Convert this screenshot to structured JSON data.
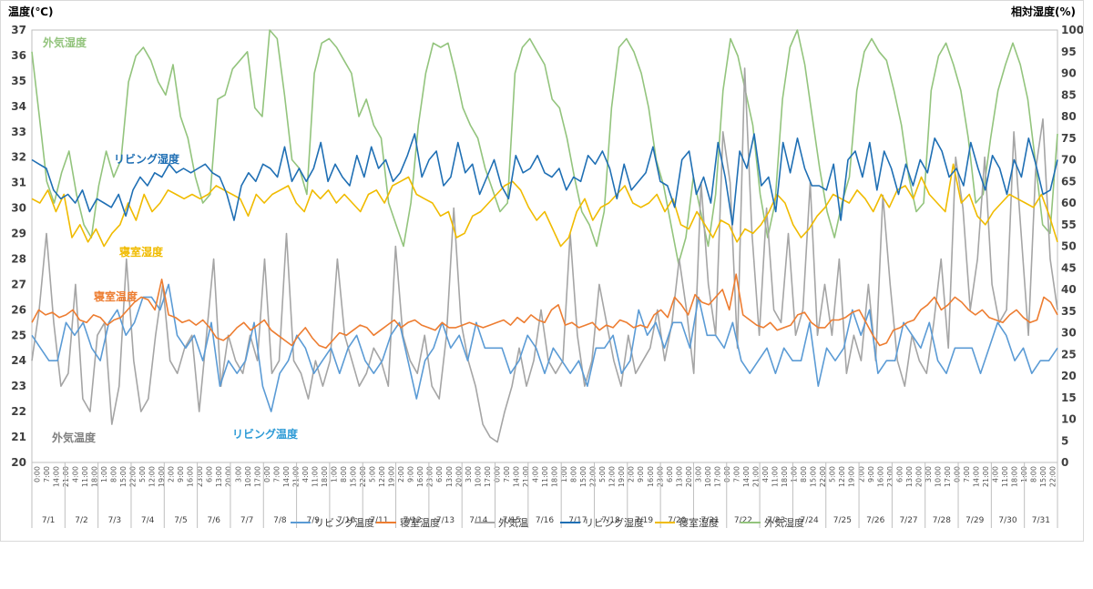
{
  "chart_data": {
    "type": "line",
    "y_left_label": "温度(℃)",
    "y_right_label": "相対湿度(%)",
    "y_left_ticks": [
      20,
      21,
      22,
      23,
      24,
      25,
      26,
      27,
      28,
      29,
      30,
      31,
      32,
      33,
      34,
      35,
      36,
      37
    ],
    "y_right_ticks": [
      0,
      5,
      10,
      15,
      20,
      25,
      30,
      35,
      40,
      45,
      50,
      55,
      60,
      65,
      70,
      75,
      80,
      85,
      90,
      95,
      100
    ],
    "ylim_left": [
      20,
      37
    ],
    "ylim_right": [
      0,
      100
    ],
    "x_hour_labels": [
      "0:00",
      "7:00",
      "14:00",
      "21:00",
      "4:00",
      "11:00",
      "18:00",
      "1:00",
      "8:00",
      "15:00",
      "22:00",
      "5:00",
      "12:00",
      "19:00",
      "2:00",
      "9:00",
      "16:00",
      "23:00",
      "6:00",
      "13:00",
      "20:00",
      "3:00",
      "10:00",
      "17:00",
      "0:00",
      "7:00",
      "14:00",
      "21:00",
      "4:00",
      "11:00",
      "18:00",
      "1:00",
      "8:00",
      "15:00",
      "22:00",
      "5:00",
      "12:00",
      "19:00",
      "2:00",
      "9:00",
      "16:00",
      "23:00",
      "6:00",
      "13:00",
      "20:00",
      "3:00",
      "10:00",
      "17:00",
      "0:00",
      "7:00",
      "14:00",
      "21:00",
      "4:00",
      "11:00",
      "18:00",
      "1:00",
      "8:00",
      "15:00",
      "22:00",
      "5:00",
      "12:00",
      "19:00",
      "2:00",
      "9:00",
      "16:00",
      "23:00",
      "6:00",
      "13:00",
      "20:00",
      "3:00",
      "10:00",
      "17:00",
      "0:00",
      "7:00",
      "14:00",
      "21:00",
      "4:00",
      "11:00",
      "18:00",
      "1:00",
      "8:00",
      "15:00",
      "22:00",
      "5:00",
      "12:00",
      "19:00",
      "2:00",
      "9:00",
      "16:00",
      "23:00",
      "6:00",
      "13:00",
      "20:00",
      "3:00",
      "10:00",
      "17:00",
      "0:00",
      "7:00",
      "14:00",
      "21:00",
      "4:00",
      "11:00",
      "18:00",
      "1:00",
      "8:00",
      "15:00",
      "22:00"
    ],
    "x_day_labels": [
      "7/1",
      "7/2",
      "7/3",
      "7/4",
      "7/5",
      "7/6",
      "7/7",
      "7/8",
      "7/9",
      "7/10",
      "7/11",
      "7/12",
      "7/13",
      "7/14",
      "7/15",
      "7/16",
      "7/17",
      "7/18",
      "7/19",
      "7/20",
      "7/21",
      "7/22",
      "7/23",
      "7/24",
      "7/25",
      "7/26",
      "7/27",
      "7/28",
      "7/29",
      "7/30",
      "7/31"
    ],
    "legend": [
      "リビング温度",
      "寝室温度",
      "外気温",
      "リビング湿度",
      "寝室湿度",
      "外気湿度"
    ],
    "series": [
      {
        "name": "リビング温度",
        "axis": "left",
        "color": "#5b9bd5",
        "values": [
          25.0,
          24.5,
          24.0,
          24.0,
          25.5,
          25.0,
          25.5,
          24.5,
          24.0,
          25.5,
          26.0,
          25.0,
          25.5,
          26.5,
          26.5,
          26.0,
          27.0,
          25.0,
          24.5,
          25.0,
          24.0,
          25.5,
          23.0,
          24.0,
          23.5,
          24.0,
          25.5,
          23.0,
          22.0,
          23.5,
          24.0,
          25.0,
          24.5,
          23.5,
          24.0,
          24.5,
          23.5,
          24.5,
          25.0,
          24.0,
          23.5,
          24.0,
          25.0,
          25.5,
          24.0,
          22.5,
          24.0,
          24.5,
          25.5,
          24.5,
          25.0,
          24.0,
          25.5,
          24.5,
          24.5,
          24.5,
          23.5,
          24.0,
          25.0,
          24.5,
          23.5,
          24.5,
          24.0,
          23.5,
          24.0,
          23.0,
          24.5,
          24.5,
          25.0,
          23.5,
          24.0,
          26.0,
          25.0,
          25.5,
          24.5,
          25.5,
          25.5,
          24.5,
          26.5,
          25.0,
          25.0,
          24.5,
          25.5,
          24.0,
          23.5,
          24.0,
          24.5,
          23.5,
          24.5,
          24.0,
          24.0,
          25.5,
          23.0,
          24.5,
          24.0,
          24.5,
          26.0,
          25.0,
          26.0,
          23.5,
          24.0,
          24.0,
          25.5,
          25.0,
          24.5,
          25.5,
          24.0,
          23.5,
          24.5,
          24.5,
          24.5,
          23.5,
          24.5,
          25.5,
          25.0,
          24.0,
          24.5,
          23.5,
          24.0,
          24.0,
          24.5
        ]
      },
      {
        "name": "寝室温度",
        "axis": "left",
        "color": "#ed7d31",
        "values": [
          25.5,
          26.0,
          25.8,
          25.9,
          25.7,
          25.8,
          26.0,
          25.6,
          25.5,
          25.8,
          25.7,
          25.4,
          25.6,
          25.7,
          26.0,
          26.3,
          26.5,
          26.4,
          26.0,
          27.2,
          25.8,
          25.7,
          25.5,
          25.6,
          25.4,
          25.6,
          25.3,
          24.9,
          24.8,
          25.0,
          25.3,
          25.5,
          25.2,
          25.4,
          25.6,
          25.2,
          25.0,
          24.8,
          24.6,
          25.0,
          25.3,
          24.9,
          24.6,
          24.5,
          24.8,
          25.1,
          25.0,
          25.2,
          25.4,
          25.3,
          25.0,
          25.2,
          25.4,
          25.6,
          25.3,
          25.5,
          25.6,
          25.4,
          25.3,
          25.2,
          25.5,
          25.3,
          25.3,
          25.4,
          25.5,
          25.4,
          25.3,
          25.4,
          25.5,
          25.6,
          25.4,
          25.7,
          25.5,
          25.8,
          25.6,
          25.5,
          26.0,
          26.2,
          25.4,
          25.5,
          25.3,
          25.4,
          25.5,
          25.2,
          25.4,
          25.3,
          25.6,
          25.5,
          25.3,
          25.4,
          25.3,
          25.8,
          26.0,
          25.7,
          26.5,
          26.2,
          25.8,
          26.6,
          26.3,
          26.2,
          26.5,
          26.8,
          26.0,
          27.4,
          25.8,
          25.6,
          25.4,
          25.3,
          25.5,
          25.2,
          25.3,
          25.4,
          25.8,
          25.9,
          25.5,
          25.3,
          25.3,
          25.6,
          25.6,
          25.7,
          25.9,
          26.0,
          25.5,
          25.0,
          24.6,
          24.7,
          25.2,
          25.3,
          25.5,
          25.6,
          26.0,
          26.2,
          26.5,
          26.0,
          26.2,
          26.5,
          26.3,
          26.0,
          25.8,
          26.0,
          25.7,
          25.6,
          25.5,
          25.8,
          26.0,
          25.7,
          25.5,
          25.6,
          26.5,
          26.3,
          25.8
        ]
      },
      {
        "name": "外気温",
        "axis": "left",
        "color": "#a5a5a5",
        "values": [
          24.0,
          26.0,
          29.0,
          25.5,
          23.0,
          23.5,
          27.0,
          22.5,
          22.0,
          25.0,
          25.5,
          21.5,
          23.0,
          28.0,
          24.0,
          22.0,
          22.5,
          25.0,
          27.0,
          24.0,
          23.5,
          24.5,
          25.0,
          22.0,
          25.0,
          28.0,
          23.0,
          25.0,
          24.0,
          23.5,
          25.0,
          24.0,
          28.0,
          23.5,
          24.0,
          29.0,
          24.0,
          23.5,
          22.5,
          24.0,
          23.0,
          24.0,
          28.0,
          25.0,
          24.0,
          23.0,
          23.5,
          24.5,
          24.0,
          23.0,
          28.5,
          25.0,
          24.0,
          23.5,
          25.0,
          23.0,
          22.5,
          25.0,
          30.0,
          25.5,
          24.0,
          23.0,
          21.5,
          21.0,
          20.8,
          22.0,
          23.0,
          24.5,
          23.0,
          24.0,
          26.0,
          24.0,
          23.5,
          24.0,
          29.0,
          25.0,
          23.0,
          24.0,
          27.0,
          25.5,
          24.0,
          23.0,
          25.0,
          23.5,
          24.0,
          24.5,
          26.0,
          24.0,
          25.5,
          28.0,
          26.0,
          23.5,
          31.0,
          27.0,
          25.0,
          33.0,
          31.0,
          24.5,
          35.5,
          29.0,
          25.0,
          30.0,
          26.0,
          25.5,
          29.0,
          25.0,
          26.0,
          31.0,
          25.0,
          27.0,
          25.0,
          28.0,
          23.5,
          25.0,
          24.0,
          27.0,
          24.0,
          30.5,
          27.0,
          24.0,
          23.0,
          25.0,
          24.0,
          23.5,
          25.5,
          28.0,
          24.5,
          32.0,
          30.0,
          26.0,
          28.0,
          32.0,
          27.0,
          25.5,
          26.0,
          33.0,
          29.0,
          25.0,
          31.5,
          33.5,
          28.0,
          26.0
        ]
      },
      {
        "name": "リビング湿度",
        "axis": "right",
        "color": "#1f6fb4",
        "values": [
          70,
          69,
          68,
          63,
          61,
          62,
          60,
          63,
          58,
          61,
          60,
          59,
          62,
          57,
          63,
          66,
          64,
          67,
          66,
          69,
          67,
          68,
          67,
          68,
          69,
          67,
          66,
          62,
          56,
          64,
          67,
          65,
          69,
          68,
          66,
          73,
          65,
          68,
          65,
          68,
          74,
          65,
          69,
          66,
          64,
          71,
          66,
          73,
          68,
          70,
          65,
          67,
          71,
          76,
          66,
          70,
          72,
          64,
          66,
          74,
          67,
          69,
          62,
          66,
          70,
          64,
          61,
          71,
          67,
          68,
          71,
          67,
          66,
          68,
          63,
          66,
          65,
          71,
          69,
          72,
          68,
          61,
          69,
          63,
          65,
          67,
          73,
          65,
          64,
          59,
          70,
          72,
          62,
          66,
          60,
          74,
          66,
          55,
          72,
          68,
          76,
          64,
          66,
          58,
          74,
          67,
          75,
          68,
          64,
          64,
          63,
          69,
          56,
          70,
          72,
          66,
          74,
          63,
          72,
          68,
          62,
          69,
          64,
          70,
          67,
          75,
          72,
          66,
          68,
          64,
          74,
          68,
          63,
          71,
          68,
          62,
          70,
          66,
          75,
          69,
          62,
          63,
          70
        ]
      },
      {
        "name": "寝室湿度",
        "axis": "right",
        "color": "#f0bb00",
        "values": [
          61,
          60,
          63,
          58,
          62,
          52,
          55,
          51,
          54,
          50,
          53,
          55,
          60,
          56,
          62,
          58,
          60,
          63,
          62,
          61,
          62,
          61,
          62,
          64,
          63,
          62,
          61,
          57,
          62,
          60,
          62,
          63,
          64,
          60,
          58,
          63,
          61,
          63,
          60,
          62,
          60,
          58,
          62,
          63,
          60,
          64,
          65,
          66,
          62,
          61,
          60,
          57,
          58,
          52,
          53,
          57,
          58,
          60,
          62,
          64,
          65,
          63,
          59,
          56,
          58,
          54,
          50,
          52,
          58,
          61,
          56,
          59,
          60,
          62,
          64,
          60,
          59,
          60,
          62,
          58,
          61,
          55,
          54,
          58,
          55,
          52,
          56,
          55,
          51,
          54,
          53,
          55,
          58,
          62,
          60,
          55,
          52,
          54,
          57,
          59,
          62,
          61,
          60,
          63,
          61,
          58,
          62,
          59,
          63,
          64,
          61,
          66,
          62,
          60,
          58,
          69,
          60,
          62,
          57,
          55,
          58,
          60,
          62,
          61,
          60,
          59,
          62,
          57,
          51
        ]
      },
      {
        "name": "外気湿度",
        "axis": "right",
        "color": "#93c47d",
        "values": [
          95,
          80,
          65,
          60,
          67,
          72,
          62,
          55,
          52,
          64,
          72,
          66,
          70,
          88,
          94,
          96,
          93,
          88,
          85,
          92,
          80,
          75,
          66,
          60,
          62,
          84,
          85,
          91,
          93,
          95,
          82,
          80,
          100,
          98,
          85,
          70,
          68,
          62,
          90,
          97,
          98,
          96,
          93,
          90,
          80,
          84,
          78,
          75,
          60,
          55,
          50,
          60,
          78,
          90,
          97,
          96,
          97,
          90,
          82,
          78,
          75,
          68,
          63,
          58,
          60,
          90,
          96,
          98,
          95,
          92,
          84,
          82,
          75,
          66,
          58,
          55,
          50,
          58,
          82,
          96,
          98,
          95,
          90,
          82,
          70,
          64,
          55,
          46,
          52,
          66,
          58,
          50,
          62,
          86,
          98,
          94,
          86,
          78,
          62,
          52,
          60,
          84,
          96,
          100,
          92,
          80,
          68,
          58,
          52,
          60,
          66,
          86,
          95,
          98,
          95,
          93,
          86,
          78,
          66,
          58,
          60,
          86,
          94,
          97,
          92,
          86,
          75,
          60,
          62,
          75,
          86,
          92,
          97,
          92,
          84,
          70,
          55,
          53,
          76
        ]
      }
    ],
    "annotations": [
      {
        "text": "外気湿度",
        "color": "#93c47d"
      },
      {
        "text": "リビング湿度",
        "color": "#1f6fb4"
      },
      {
        "text": "寝室湿度",
        "color": "#f0bb00"
      },
      {
        "text": "寝室温度",
        "color": "#ed7d31"
      },
      {
        "text": "外気温度",
        "color": "#808080"
      },
      {
        "text": "リビング温度",
        "color": "#2e9bd6"
      }
    ]
  }
}
